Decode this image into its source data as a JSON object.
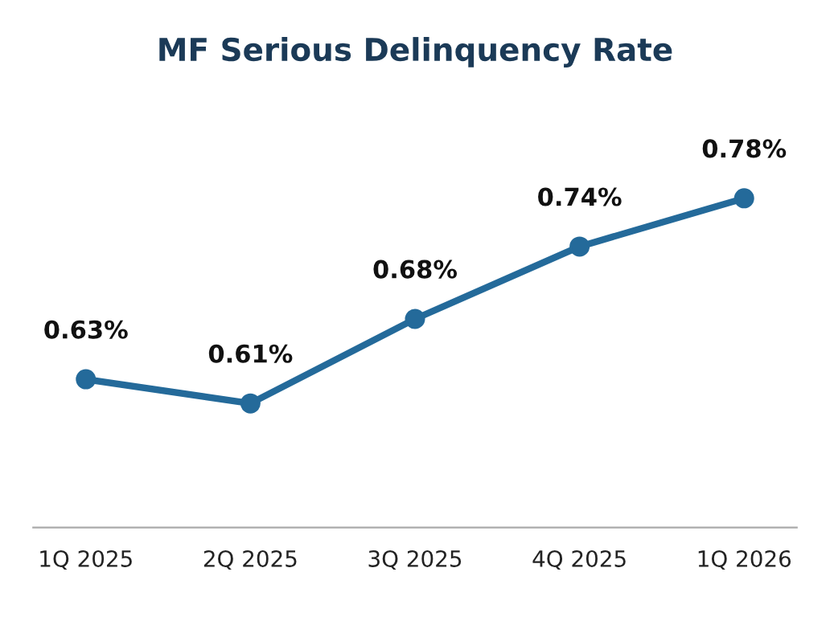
{
  "chart_data": {
    "type": "line",
    "title": "MF Serious Delinquency Rate",
    "categories": [
      "1Q 2025",
      "2Q 2025",
      "3Q 2025",
      "4Q 2025",
      "1Q 2026"
    ],
    "values": [
      0.63,
      0.61,
      0.68,
      0.74,
      0.78
    ],
    "value_labels": [
      "0.63%",
      "0.61%",
      "0.68%",
      "0.74%",
      "0.78%"
    ],
    "color": "#246a9a",
    "marker": "circle",
    "line_style": "solid",
    "grid": false,
    "legend": false,
    "tick_labels": "x"
  }
}
